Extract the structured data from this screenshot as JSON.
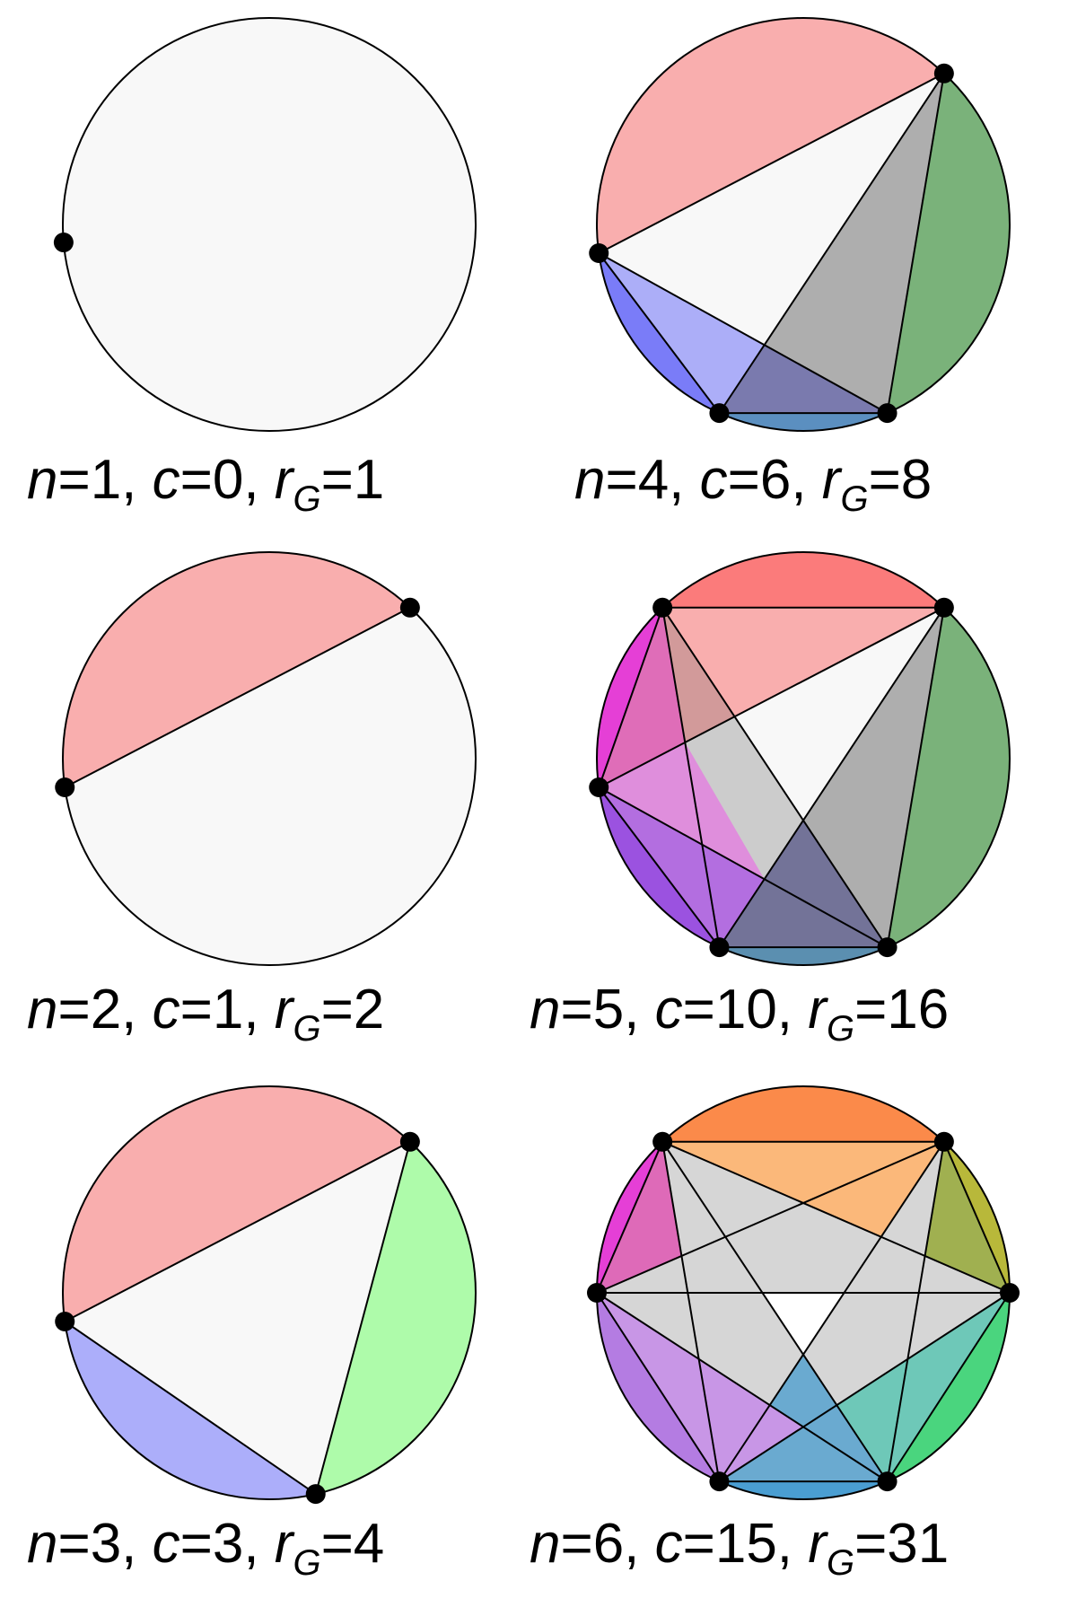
{
  "panels": [
    {
      "n": 1,
      "c": 0,
      "rG": 1,
      "caption": {
        "n_var": "n",
        "n_val": "=1,",
        "c_var": "c",
        "c_val": "=0,",
        "r_var": "r",
        "r_sub": "G",
        "r_val": "=1"
      },
      "point_angles": [
        185
      ],
      "regions": []
    },
    {
      "n": 2,
      "c": 1,
      "rG": 2,
      "caption": {
        "n_var": "n",
        "n_val": "=2,",
        "c_var": "c",
        "c_val": "=1,",
        "r_var": "r",
        "r_sub": "G",
        "r_val": "=2"
      },
      "point_angles": [
        188,
        47
      ],
      "regions": [
        {
          "type": "segment",
          "a": 0,
          "b": 1,
          "color": "#f9aeae"
        }
      ]
    },
    {
      "n": 3,
      "c": 3,
      "rG": 4,
      "caption": {
        "n_var": "n",
        "n_val": "=3,",
        "c_var": "c",
        "c_val": "=3,",
        "r_var": "r",
        "r_sub": "G",
        "r_val": "=4"
      },
      "point_angles": [
        188,
        47,
        -77
      ],
      "regions": [
        {
          "type": "segment",
          "a": 0,
          "b": 1,
          "color": "#f9aeae"
        },
        {
          "type": "segment",
          "a": 1,
          "b": 2,
          "color": "#aefbaa"
        },
        {
          "type": "segment",
          "a": 2,
          "b": 0,
          "color": "#acaefa"
        }
      ]
    },
    {
      "n": 4,
      "c": 6,
      "rG": 8,
      "caption": {
        "n_var": "n",
        "n_val": "=4,",
        "c_var": "c",
        "c_val": "=6,",
        "r_var": "r",
        "r_sub": "G",
        "r_val": "=8"
      },
      "point_angles": [
        188,
        47,
        -66,
        -114
      ],
      "regions": [
        {
          "type": "segment",
          "a": 0,
          "b": 1,
          "color": "#f9aeae"
        },
        {
          "type": "segment",
          "a": 1,
          "b": 2,
          "color": "#7ab27a"
        },
        {
          "type": "segment",
          "a": 2,
          "b": 3,
          "color": "#5b8fc0"
        },
        {
          "type": "segment",
          "a": 3,
          "b": 0,
          "color": "#7a7cf8"
        },
        {
          "type": "poly",
          "pts": [
            [
              2
            ],
            [
              3
            ],
            [
              3,
              1,
              2,
              0
            ]
          ],
          "color": "#7a7aae"
        },
        {
          "type": "poly",
          "pts": [
            [
              3
            ],
            [
              0
            ],
            [
              3,
              1,
              2,
              0
            ]
          ],
          "color": "#acaef8"
        },
        {
          "type": "poly",
          "pts": [
            [
              2
            ],
            [
              1
            ],
            [
              3,
              1,
              2,
              0
            ]
          ],
          "color": "#aeaeae"
        }
      ]
    },
    {
      "n": 5,
      "c": 10,
      "rG": 16,
      "caption": {
        "n_var": "n",
        "n_val": "=5,",
        "c_var": "c",
        "c_val": "=10,",
        "r_var": "r",
        "r_sub": "G",
        "r_val": "=16"
      },
      "point_angles": [
        188,
        47,
        -66,
        -114,
        133
      ],
      "regions": [
        {
          "type": "segment",
          "a": 0,
          "b": 4,
          "color": "#e53fd6"
        },
        {
          "type": "segment",
          "a": 4,
          "b": 1,
          "color": "#fb7b7b"
        },
        {
          "type": "segment",
          "a": 1,
          "b": 2,
          "color": "#7ab27a"
        },
        {
          "type": "segment",
          "a": 2,
          "b": 3,
          "color": "#5b8fb0"
        },
        {
          "type": "segment",
          "a": 3,
          "b": 0,
          "color": "#9b52e0"
        },
        {
          "type": "poly",
          "pts": [
            [
              0
            ],
            [
              4
            ],
            [
              4,
              3,
              0,
              1
            ]
          ],
          "color": "#df6db8"
        },
        {
          "type": "poly",
          "pts": [
            [
              0
            ],
            [
              4,
              3,
              0,
              1
            ],
            [
              4,
              2,
              0,
              1
            ],
            [
              3,
              1,
              0,
              2
            ]
          ],
          "color": "#df8edc"
        },
        {
          "type": "poly",
          "pts": [
            [
              0
            ],
            [
              3
            ],
            [
              3,
              1,
              0,
              2
            ]
          ],
          "color": "#b36ee0"
        },
        {
          "type": "poly",
          "pts": [
            [
              4
            ],
            [
              1
            ],
            [
              4,
              2,
              0,
              1
            ]
          ],
          "color": "#f9aeae"
        },
        {
          "type": "poly",
          "pts": [
            [
              4
            ],
            [
              4,
              2,
              0,
              1
            ],
            [
              4,
              3,
              0,
              1
            ]
          ],
          "color": "#d29a9a"
        },
        {
          "type": "poly",
          "pts": [
            [
              3
            ],
            [
              2
            ],
            [
              3,
              1,
              2,
              4
            ]
          ],
          "color": "#737398"
        },
        {
          "type": "poly",
          "pts": [
            [
              3
            ],
            [
              3,
              1,
              2,
              4
            ],
            [
              3,
              1,
              0,
              2
            ]
          ],
          "color": "#9898cc"
        },
        {
          "type": "poly",
          "pts": [
            [
              2
            ],
            [
              1
            ],
            [
              3,
              1,
              2,
              4
            ]
          ],
          "color": "#aeaeae"
        },
        {
          "type": "poly",
          "pts": [
            [
              2
            ],
            [
              3,
              1,
              2,
              4
            ],
            [
              4,
              2,
              3,
              1
            ],
            [
              4,
              2,
              0,
              1
            ]
          ],
          "color": "#aeaeae"
        },
        {
          "type": "poly",
          "pts": [
            [
              3,
              1,
              2,
              4
            ],
            [
              4,
              2,
              3,
              1
            ],
            [
              3,
              1,
              0,
              2
            ]
          ],
          "color": "#999999"
        },
        {
          "type": "poly",
          "pts": [
            [
              4,
              3,
              0,
              1
            ],
            [
              4,
              2,
              0,
              1
            ],
            [
              4,
              2,
              3,
              1
            ],
            [
              3,
              1,
              0,
              2
            ]
          ],
          "color": "#cccccc"
        }
      ]
    },
    {
      "n": 6,
      "c": 15,
      "rG": 31,
      "caption": {
        "n_var": "n",
        "n_val": "=6,",
        "c_var": "c",
        "c_val": "=15,",
        "r_var": "r",
        "r_sub": "G",
        "r_val": "=31"
      },
      "point_angles": [
        180,
        47,
        0,
        -66,
        -114,
        133
      ],
      "regions": [
        {
          "type": "segment",
          "a": 0,
          "b": 5,
          "color": "#e53fd6"
        },
        {
          "type": "segment",
          "a": 5,
          "b": 1,
          "color": "#fb8a4a"
        },
        {
          "type": "segment",
          "a": 1,
          "b": 2,
          "color": "#b8b83a"
        },
        {
          "type": "segment",
          "a": 2,
          "b": 3,
          "color": "#4ad57e"
        },
        {
          "type": "segment",
          "a": 3,
          "b": 4,
          "color": "#4a9ed2"
        },
        {
          "type": "segment",
          "a": 4,
          "b": 0,
          "color": "#b47ce2"
        },
        {
          "type": "poly",
          "pts": [
            [
              5
            ],
            [
              1
            ],
            [
              5,
              2,
              1,
              4
            ]
          ],
          "color": "#fbb87a"
        },
        {
          "type": "poly",
          "pts": [
            [
              1
            ],
            [
              2
            ],
            [
              1,
              3,
              2,
              5
            ]
          ],
          "color": "#a0b050"
        },
        {
          "type": "poly",
          "pts": [
            [
              2
            ],
            [
              3
            ],
            [
              2,
              4,
              3,
              0
            ]
          ],
          "color": "#6ec8b8"
        },
        {
          "type": "poly",
          "pts": [
            [
              3
            ],
            [
              4
            ],
            [
              3,
              5,
              4,
              1
            ]
          ],
          "color": "#6aaad0"
        },
        {
          "type": "poly",
          "pts": [
            [
              4
            ],
            [
              0
            ],
            [
              4,
              2,
              0,
              3
            ]
          ],
          "color": "#c896e6"
        },
        {
          "type": "poly",
          "pts": [
            [
              0
            ],
            [
              5
            ],
            [
              0,
              1,
              5,
              4
            ]
          ],
          "color": "#de6ab8"
        }
      ],
      "interior_color": "#d6d6d6"
    }
  ]
}
